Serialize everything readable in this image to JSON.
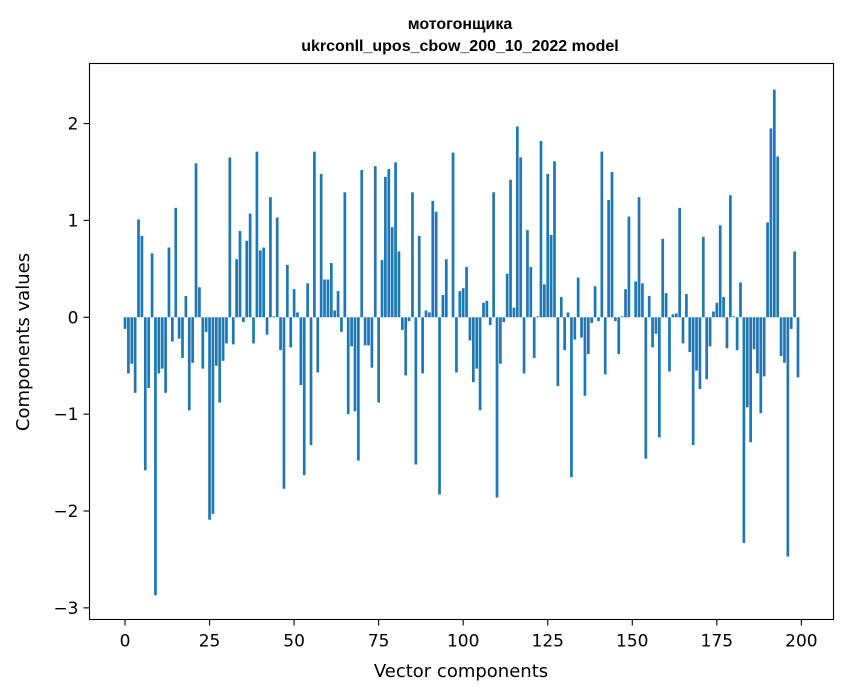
{
  "chart_data": {
    "type": "bar",
    "title": "мотогонщика",
    "subtitle": "ukrconll_upos_cbow_200_10_2022 model",
    "xlabel": "Vector components",
    "ylabel": "Components values",
    "xlim": [
      -10.5,
      209.5
    ],
    "ylim": [
      -3.12,
      2.62
    ],
    "xticks": [
      0,
      25,
      50,
      75,
      100,
      125,
      150,
      175,
      200
    ],
    "xtick_labels": [
      "0",
      "25",
      "50",
      "75",
      "100",
      "125",
      "150",
      "175",
      "200"
    ],
    "yticks": [
      -3,
      -2,
      -1,
      0,
      1,
      2
    ],
    "ytick_labels": [
      "−3",
      "−2",
      "−1",
      "0",
      "1",
      "2"
    ],
    "grid": false,
    "bar_color": "#1f77b4",
    "x": [
      0,
      1,
      2,
      3,
      4,
      5,
      6,
      7,
      8,
      9,
      10,
      11,
      12,
      13,
      14,
      15,
      16,
      17,
      18,
      19,
      20,
      21,
      22,
      23,
      24,
      25,
      26,
      27,
      28,
      29,
      30,
      31,
      32,
      33,
      34,
      35,
      36,
      37,
      38,
      39,
      40,
      41,
      42,
      43,
      44,
      45,
      46,
      47,
      48,
      49,
      50,
      51,
      52,
      53,
      54,
      55,
      56,
      57,
      58,
      59,
      60,
      61,
      62,
      63,
      64,
      65,
      66,
      67,
      68,
      69,
      70,
      71,
      72,
      73,
      74,
      75,
      76,
      77,
      78,
      79,
      80,
      81,
      82,
      83,
      84,
      85,
      86,
      87,
      88,
      89,
      90,
      91,
      92,
      93,
      94,
      95,
      96,
      97,
      98,
      99,
      100,
      101,
      102,
      103,
      104,
      105,
      106,
      107,
      108,
      109,
      110,
      111,
      112,
      113,
      114,
      115,
      116,
      117,
      118,
      119,
      120,
      121,
      122,
      123,
      124,
      125,
      126,
      127,
      128,
      129,
      130,
      131,
      132,
      133,
      134,
      135,
      136,
      137,
      138,
      139,
      140,
      141,
      142,
      143,
      144,
      145,
      146,
      147,
      148,
      149,
      150,
      151,
      152,
      153,
      154,
      155,
      156,
      157,
      158,
      159,
      160,
      161,
      162,
      163,
      164,
      165,
      166,
      167,
      168,
      169,
      170,
      171,
      172,
      173,
      174,
      175,
      176,
      177,
      178,
      179,
      180,
      181,
      182,
      183,
      184,
      185,
      186,
      187,
      188,
      189,
      190,
      191,
      192,
      193,
      194,
      195,
      196,
      197,
      198,
      199
    ],
    "values": [
      -0.12,
      -0.58,
      -0.48,
      -0.78,
      1.01,
      0.84,
      -1.58,
      -0.73,
      0.66,
      -2.87,
      -0.58,
      -0.53,
      -0.78,
      0.72,
      -0.25,
      1.13,
      -0.22,
      -0.42,
      0.22,
      -0.96,
      -0.47,
      1.59,
      0.31,
      -0.53,
      -0.15,
      -2.09,
      -2.03,
      -0.5,
      -0.88,
      -0.45,
      -0.27,
      1.65,
      -0.28,
      0.6,
      0.89,
      -0.05,
      0.79,
      1.07,
      -0.27,
      1.71,
      0.69,
      0.72,
      -0.18,
      1.24,
      0.01,
      1.03,
      -0.34,
      -1.77,
      0.54,
      -0.31,
      0.29,
      0.05,
      -0.7,
      -1.63,
      0.35,
      -1.32,
      1.71,
      -0.57,
      1.48,
      0.39,
      0.39,
      0.56,
      0.07,
      0.27,
      -0.15,
      1.29,
      -1.0,
      -0.3,
      -0.97,
      -1.48,
      1.52,
      -0.29,
      -0.29,
      -0.52,
      1.56,
      -0.88,
      0.59,
      1.45,
      1.53,
      0.93,
      1.6,
      0.68,
      -0.13,
      -0.6,
      -0.04,
      1.29,
      -1.52,
      0.84,
      -0.58,
      0.07,
      0.05,
      1.2,
      1.09,
      -1.83,
      0.23,
      0.6,
      0.0,
      1.7,
      -0.57,
      0.27,
      0.3,
      0.52,
      -0.24,
      -0.67,
      -0.53,
      -0.96,
      0.15,
      0.17,
      -0.08,
      1.29,
      -1.86,
      -0.48,
      -0.05,
      0.45,
      1.42,
      0.1,
      1.97,
      1.65,
      -0.58,
      0.9,
      0.52,
      -0.42,
      0.01,
      1.82,
      0.34,
      1.48,
      0.85,
      1.61,
      -0.71,
      0.21,
      -0.34,
      0.05,
      -1.65,
      -0.23,
      0.41,
      -0.21,
      -0.81,
      -0.38,
      -0.06,
      0.32,
      -0.04,
      1.71,
      -0.59,
      1.21,
      1.5,
      -0.04,
      -0.38,
      0.01,
      0.29,
      1.04,
      0.0,
      0.37,
      1.24,
      0.35,
      -1.46,
      0.22,
      -0.31,
      -0.17,
      -1.24,
      0.81,
      0.25,
      -0.56,
      0.03,
      0.04,
      1.13,
      -0.27,
      0.24,
      -0.36,
      -1.32,
      -0.55,
      -0.74,
      0.83,
      -0.64,
      -0.3,
      0.06,
      0.15,
      0.95,
      0.21,
      -0.32,
      1.26,
      0.01,
      -0.34,
      0.36,
      -2.33,
      -0.93,
      -1.29,
      -0.33,
      -0.58,
      -0.99,
      -0.61,
      0.98,
      1.95,
      2.35,
      1.66,
      -0.4,
      -0.47,
      -2.47,
      -0.12,
      0.68,
      -0.62
    ]
  }
}
